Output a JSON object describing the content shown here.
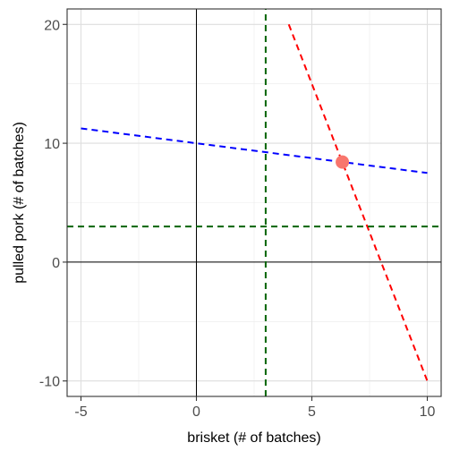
{
  "chart_data": {
    "type": "line",
    "xlabel": "brisket (# of batches)",
    "ylabel": "pulled pork (# of batches)",
    "xlim": [
      -5.6,
      10.6
    ],
    "ylim": [
      -11.3,
      21.3
    ],
    "x_ticks": [
      -5,
      0,
      5,
      10
    ],
    "y_ticks": [
      -10,
      0,
      10,
      20
    ],
    "x_tick_labels": [
      "-5",
      "0",
      "5",
      "10"
    ],
    "y_tick_labels": [
      "-10",
      "0",
      "10",
      "20"
    ],
    "grid": true,
    "legend": "none",
    "series": [
      {
        "color": "#0000ff",
        "style": "dashed",
        "x": [
          -5,
          10
        ],
        "y": [
          11.25,
          7.5
        ]
      },
      {
        "color": "#ff0000",
        "style": "dashed",
        "x": [
          4,
          10
        ],
        "y": [
          20,
          -10
        ]
      },
      {
        "color": "#006400",
        "style": "dashed",
        "orientation": "vertical",
        "x": [
          3,
          3
        ],
        "y": [
          -11.3,
          21.3
        ]
      },
      {
        "color": "#006400",
        "style": "dashed",
        "orientation": "horizontal",
        "x": [
          -5.6,
          10.6
        ],
        "y": [
          3,
          3
        ]
      }
    ],
    "points": [
      {
        "x": 6.32,
        "y": 8.42,
        "color": "#f8766d"
      }
    ],
    "reference_lines": {
      "x_axis_at": 0,
      "y_axis_at": 0,
      "color": "#000000"
    }
  }
}
